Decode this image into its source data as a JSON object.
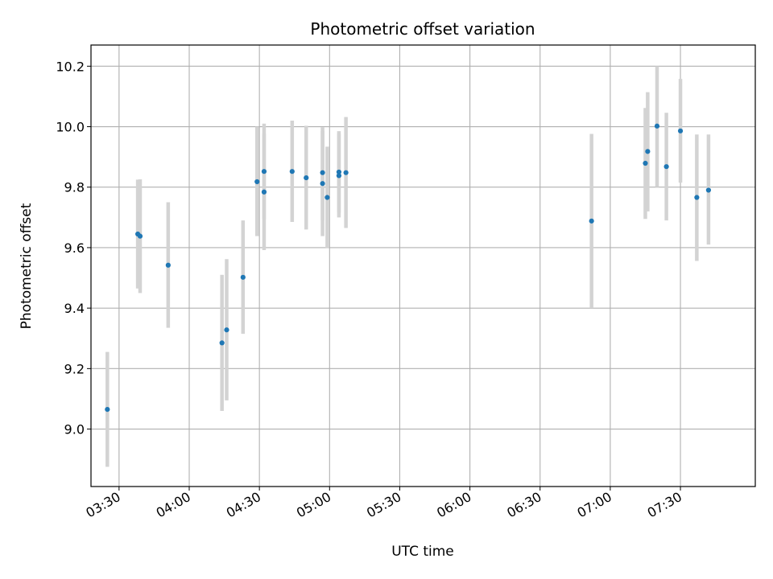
{
  "chart_data": {
    "type": "scatter",
    "title": "Photometric offset variation",
    "xlabel": "UTC time",
    "ylabel": "Photometric offset",
    "x_ticks": [
      "03:30",
      "04:00",
      "04:30",
      "05:00",
      "05:30",
      "06:00",
      "06:30",
      "07:00",
      "07:30"
    ],
    "y_ticks": [
      "9.0",
      "9.2",
      "9.4",
      "9.6",
      "9.8",
      "10.0",
      "10.2"
    ],
    "xlim": [
      "03:18",
      "08:02"
    ],
    "ylim": [
      8.81,
      10.27
    ],
    "grid": true,
    "colors": {
      "point": "#1f77b4",
      "errorbar": "#d3d3d3",
      "grid": "#b0b0b0"
    },
    "points": [
      {
        "x": "03:25",
        "y": 9.065,
        "yerr_low": 8.875,
        "yerr_high": 9.255
      },
      {
        "x": "03:38",
        "y": 9.645,
        "yerr_low": 9.465,
        "yerr_high": 9.825
      },
      {
        "x": "03:39",
        "y": 9.638,
        "yerr_low": 9.45,
        "yerr_high": 9.826
      },
      {
        "x": "03:51",
        "y": 9.542,
        "yerr_low": 9.335,
        "yerr_high": 9.75
      },
      {
        "x": "04:14",
        "y": 9.285,
        "yerr_low": 9.06,
        "yerr_high": 9.51
      },
      {
        "x": "04:16",
        "y": 9.328,
        "yerr_low": 9.095,
        "yerr_high": 9.562
      },
      {
        "x": "04:23",
        "y": 9.502,
        "yerr_low": 9.315,
        "yerr_high": 9.69
      },
      {
        "x": "04:29",
        "y": 9.818,
        "yerr_low": 9.638,
        "yerr_high": 10.0
      },
      {
        "x": "04:32",
        "y": 9.784,
        "yerr_low": 9.592,
        "yerr_high": 9.976
      },
      {
        "x": "04:32",
        "y": 9.852,
        "yerr_low": 9.695,
        "yerr_high": 10.01
      },
      {
        "x": "04:44",
        "y": 9.852,
        "yerr_low": 9.685,
        "yerr_high": 10.02
      },
      {
        "x": "04:50",
        "y": 9.831,
        "yerr_low": 9.66,
        "yerr_high": 10.003
      },
      {
        "x": "04:57",
        "y": 9.848,
        "yerr_low": 9.69,
        "yerr_high": 9.998
      },
      {
        "x": "04:57",
        "y": 9.812,
        "yerr_low": 9.638,
        "yerr_high": 9.986
      },
      {
        "x": "04:59",
        "y": 9.766,
        "yerr_low": 9.598,
        "yerr_high": 9.934
      },
      {
        "x": "05:04",
        "y": 9.85,
        "yerr_low": 9.716,
        "yerr_high": 9.985
      },
      {
        "x": "05:04",
        "y": 9.838,
        "yerr_low": 9.7,
        "yerr_high": 9.976
      },
      {
        "x": "05:07",
        "y": 9.848,
        "yerr_low": 9.665,
        "yerr_high": 10.032
      },
      {
        "x": "06:52",
        "y": 9.688,
        "yerr_low": 9.4,
        "yerr_high": 9.976
      },
      {
        "x": "07:15",
        "y": 9.879,
        "yerr_low": 9.695,
        "yerr_high": 10.062
      },
      {
        "x": "07:16",
        "y": 9.918,
        "yerr_low": 9.72,
        "yerr_high": 10.114
      },
      {
        "x": "07:20",
        "y": 10.002,
        "yerr_low": 9.8,
        "yerr_high": 10.2
      },
      {
        "x": "07:24",
        "y": 9.868,
        "yerr_low": 9.69,
        "yerr_high": 10.046
      },
      {
        "x": "07:30",
        "y": 9.986,
        "yerr_low": 9.815,
        "yerr_high": 10.158
      },
      {
        "x": "07:37",
        "y": 9.766,
        "yerr_low": 9.556,
        "yerr_high": 9.974
      },
      {
        "x": "07:42",
        "y": 9.79,
        "yerr_low": 9.61,
        "yerr_high": 9.974
      }
    ]
  }
}
